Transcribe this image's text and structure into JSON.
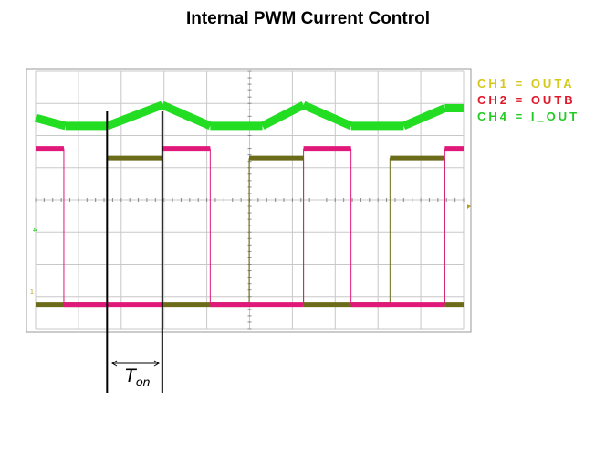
{
  "title": "Internal PWM Current Control",
  "colors": {
    "ch1": "#6b6b1a",
    "ch2": "#e0187a",
    "ch4": "#22dd22",
    "legend_ch1": "#d4c81a",
    "legend_ch2": "#e0182a",
    "legend_ch4": "#22cc22",
    "grid": "#c8c8c8",
    "frame": "#999999"
  },
  "legend": [
    {
      "label": "CH1 = OUTA",
      "color_key": "legend_ch1"
    },
    {
      "label": "CH2 = OUTB",
      "color_key": "legend_ch2"
    },
    {
      "label": "CH4 = I_OUT",
      "color_key": "legend_ch4"
    }
  ],
  "annotation": {
    "ton_main": "T",
    "ton_sub": "on"
  },
  "channel_markers": {
    "ch4_marker": "4",
    "ch1_marker": "1"
  },
  "chart_data": {
    "type": "line",
    "title": "Internal PWM Current Control",
    "grid": true,
    "divisions": {
      "x": 10,
      "y": 8
    },
    "xlim": [
      0,
      10
    ],
    "ylim": [
      0,
      8
    ],
    "series": [
      {
        "name": "CH1 = OUTA",
        "x": [
          0,
          0.66,
          0.66,
          1.67,
          1.67,
          2.96,
          2.96,
          4.99,
          4.99,
          6.26,
          6.26,
          8.28,
          8.28,
          9.56,
          9.56,
          10
        ],
        "y": [
          0.75,
          0.75,
          0.75,
          0.75,
          5.3,
          5.3,
          0.75,
          0.75,
          5.3,
          5.3,
          0.75,
          0.75,
          5.3,
          5.3,
          0.75,
          0.75
        ]
      },
      {
        "name": "CH2 = OUTB",
        "x": [
          0,
          0.66,
          0.66,
          2.96,
          2.96,
          4.08,
          4.08,
          6.26,
          6.26,
          7.37,
          7.37,
          9.56,
          9.56,
          10
        ],
        "y": [
          5.6,
          5.6,
          0.75,
          0.75,
          5.6,
          5.6,
          0.75,
          0.75,
          5.6,
          5.6,
          0.75,
          0.75,
          5.6,
          5.6
        ]
      },
      {
        "name": "CH4 = I_OUT",
        "x": [
          0,
          0.7,
          1.67,
          2.96,
          4.08,
          5.3,
          6.26,
          7.37,
          8.6,
          9.56,
          10
        ],
        "y": [
          6.55,
          6.3,
          6.3,
          6.95,
          6.3,
          6.3,
          6.95,
          6.3,
          6.3,
          6.85,
          6.85
        ]
      }
    ],
    "cursors": [
      1.67,
      2.96
    ]
  }
}
